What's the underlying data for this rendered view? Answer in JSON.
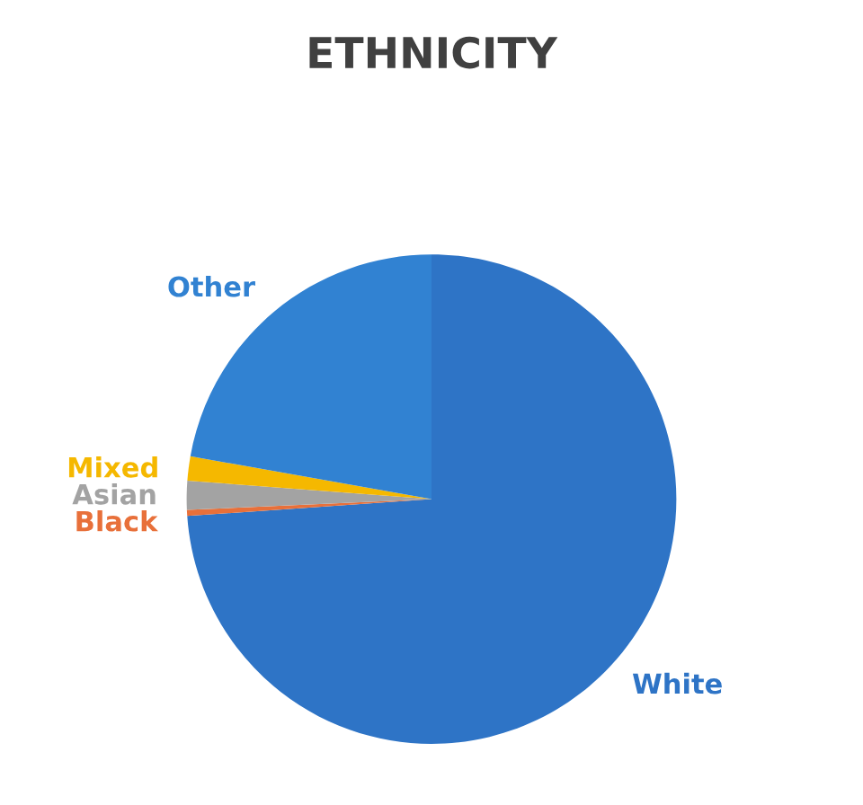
{
  "chart_data": {
    "type": "pie",
    "title": "ETHNICITY",
    "categories": [
      "White",
      "Black",
      "Asian",
      "Mixed",
      "Other"
    ],
    "values": [
      73.9,
      0.4,
      1.9,
      1.6,
      22.2
    ],
    "colors": [
      "#2e74c6",
      "#e8703a",
      "#a3a3a3",
      "#f5b800",
      "#3182d2"
    ]
  }
}
